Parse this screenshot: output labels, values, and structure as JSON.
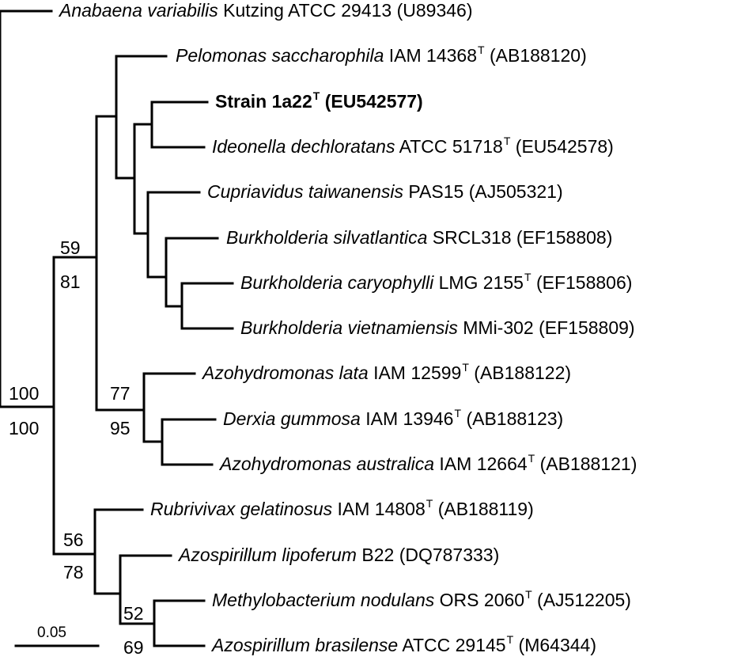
{
  "taxa": [
    {
      "id": "anabaena",
      "italic": "Anabaena variabilis",
      "strain": "Kutzing ATCC 29413",
      "type": false,
      "acc": "(U89346)"
    },
    {
      "id": "pelomonas",
      "italic": "Pelomonas saccharophila",
      "strain": "IAM 14368",
      "type": true,
      "acc": "(AB188120)"
    },
    {
      "id": "strain1a22",
      "italic": "",
      "strain": "Strain 1a22",
      "type": true,
      "acc": "(EU542577)",
      "bold": true
    },
    {
      "id": "ideonella",
      "italic": "Ideonella dechloratans",
      "strain": "ATCC 51718",
      "type": true,
      "acc": "(EU542578)"
    },
    {
      "id": "cupriavidus",
      "italic": "Cupriavidus taiwanensis",
      "strain": "PAS15",
      "type": false,
      "acc": "(AJ505321)"
    },
    {
      "id": "bsilvatlantica",
      "italic": "Burkholderia silvatlantica",
      "strain": "SRCL318",
      "type": false,
      "acc": "(EF158808)"
    },
    {
      "id": "bcaryophylli",
      "italic": "Burkholderia caryophylli",
      "strain": "LMG 2155",
      "type": true,
      "acc": "(EF158806)"
    },
    {
      "id": "bvietnamiensis",
      "italic": "Burkholderia vietnamiensis",
      "strain": "MMi-302",
      "type": false,
      "acc": "(EF158809)"
    },
    {
      "id": "azlata",
      "italic": "Azohydromonas lata",
      "strain": "IAM 12599",
      "type": true,
      "acc": "(AB188122)"
    },
    {
      "id": "derxia",
      "italic": "Derxia gummosa",
      "strain": "IAM 13946",
      "type": true,
      "acc": "(AB188123)"
    },
    {
      "id": "azaustralica",
      "italic": "Azohydromonas australica",
      "strain": "IAM 12664",
      "type": true,
      "acc": "(AB188121)"
    },
    {
      "id": "rubrivivax",
      "italic": "Rubrivivax gelatinosus",
      "strain": "IAM 14808",
      "type": true,
      "acc": "(AB188119)"
    },
    {
      "id": "azlipoferum",
      "italic": "Azospirillum lipoferum",
      "strain": "B22",
      "type": false,
      "acc": "(DQ787333)"
    },
    {
      "id": "methylo",
      "italic": "Methylobacterium nodulans",
      "strain": "ORS 2060",
      "type": true,
      "acc": "(AJ512205)"
    },
    {
      "id": "azbrasilense",
      "italic": "Azospirillum brasilense",
      "strain": "ATCC 29145",
      "type": true,
      "acc": "(M64344)"
    }
  ],
  "type_mark": "T",
  "bootstrap": {
    "root_top": "100",
    "root_bottom": "100",
    "big_top": "59",
    "big_bottom": "81",
    "azo_top": "77",
    "azo_bottom": "95",
    "rub_top": "56",
    "rub_bottom": "78",
    "meth_top": "52",
    "meth_bottom": "69"
  },
  "scale": {
    "label": "0.05"
  },
  "colors": {
    "line": "#000000",
    "text": "#000000",
    "background": "#ffffff"
  }
}
